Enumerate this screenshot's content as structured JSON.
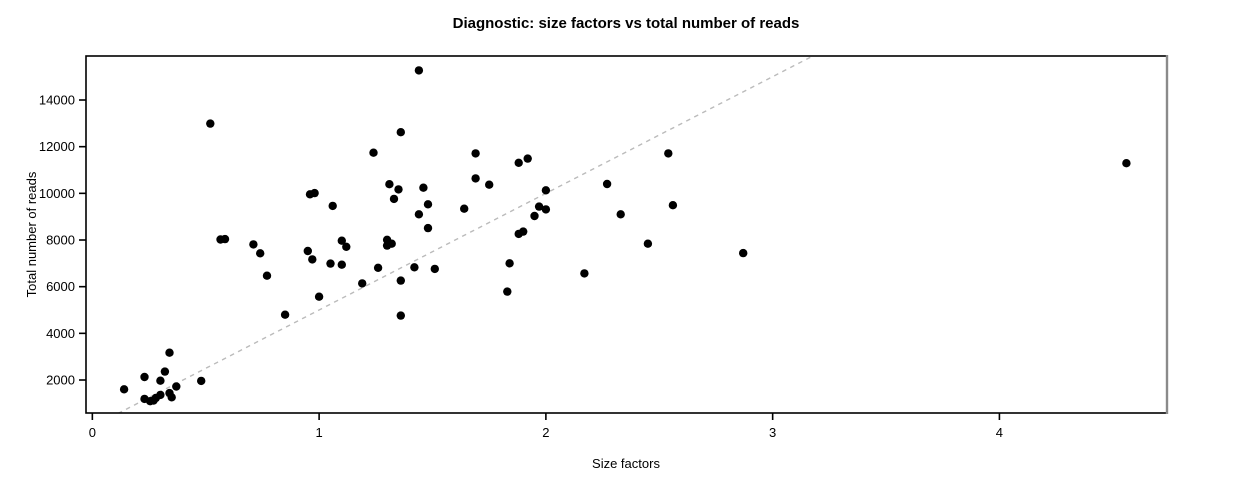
{
  "chart_data": {
    "type": "scatter",
    "title": "Diagnostic: size factors vs total number of reads",
    "xlabel": "Size factors",
    "ylabel": "Total number of reads",
    "xlim": [
      -0.028,
      4.739
    ],
    "ylim": [
      586,
      15886
    ],
    "x_ticks": [
      0,
      1,
      2,
      3,
      4
    ],
    "y_ticks": [
      2000,
      4000,
      6000,
      8000,
      10000,
      12000,
      14000
    ],
    "grid": false,
    "legend_position": "none",
    "point_color": "#000000",
    "axis_color": "#000000",
    "right_border_color": "#8a8a8a",
    "reference_line": {
      "slope": 5000,
      "intercept": 0,
      "style": "dashed",
      "color": "#bbbbbb"
    },
    "points": [
      [
        0.14,
        1600
      ],
      [
        0.23,
        2130
      ],
      [
        0.3,
        1970
      ],
      [
        0.32,
        2360
      ],
      [
        0.34,
        3170
      ],
      [
        0.23,
        1190
      ],
      [
        0.255,
        1090
      ],
      [
        0.27,
        1120
      ],
      [
        0.28,
        1230
      ],
      [
        0.3,
        1360
      ],
      [
        0.34,
        1440
      ],
      [
        0.35,
        1260
      ],
      [
        0.37,
        1720
      ],
      [
        0.48,
        1960
      ],
      [
        0.52,
        12990
      ],
      [
        0.565,
        8020
      ],
      [
        0.585,
        8040
      ],
      [
        0.71,
        7810
      ],
      [
        0.74,
        7430
      ],
      [
        0.77,
        6470
      ],
      [
        0.85,
        4800
      ],
      [
        0.95,
        7530
      ],
      [
        0.96,
        9960
      ],
      [
        0.97,
        7170
      ],
      [
        0.98,
        10010
      ],
      [
        1.0,
        5570
      ],
      [
        1.05,
        6990
      ],
      [
        1.06,
        9460
      ],
      [
        1.1,
        6940
      ],
      [
        1.1,
        7970
      ],
      [
        1.12,
        7710
      ],
      [
        1.19,
        6140
      ],
      [
        1.24,
        11740
      ],
      [
        1.26,
        6810
      ],
      [
        1.3,
        8010
      ],
      [
        1.3,
        7760
      ],
      [
        1.32,
        7840
      ],
      [
        1.31,
        10390
      ],
      [
        1.33,
        9760
      ],
      [
        1.35,
        10170
      ],
      [
        1.36,
        12620
      ],
      [
        1.36,
        6260
      ],
      [
        1.36,
        4760
      ],
      [
        1.42,
        6830
      ],
      [
        1.44,
        15270
      ],
      [
        1.44,
        9100
      ],
      [
        1.46,
        10240
      ],
      [
        1.48,
        9530
      ],
      [
        1.48,
        8510
      ],
      [
        1.51,
        6760
      ],
      [
        1.64,
        9340
      ],
      [
        1.69,
        11710
      ],
      [
        1.69,
        10640
      ],
      [
        1.75,
        10370
      ],
      [
        1.83,
        5790
      ],
      [
        1.84,
        7000
      ],
      [
        1.88,
        11310
      ],
      [
        1.92,
        11490
      ],
      [
        1.88,
        8260
      ],
      [
        1.9,
        8360
      ],
      [
        1.95,
        9030
      ],
      [
        1.97,
        9430
      ],
      [
        2.0,
        9310
      ],
      [
        2.0,
        10130
      ],
      [
        2.17,
        6570
      ],
      [
        2.27,
        10400
      ],
      [
        2.33,
        9100
      ],
      [
        2.45,
        7840
      ],
      [
        2.54,
        11710
      ],
      [
        2.56,
        9490
      ],
      [
        2.87,
        7440
      ],
      [
        4.56,
        11290
      ]
    ]
  }
}
